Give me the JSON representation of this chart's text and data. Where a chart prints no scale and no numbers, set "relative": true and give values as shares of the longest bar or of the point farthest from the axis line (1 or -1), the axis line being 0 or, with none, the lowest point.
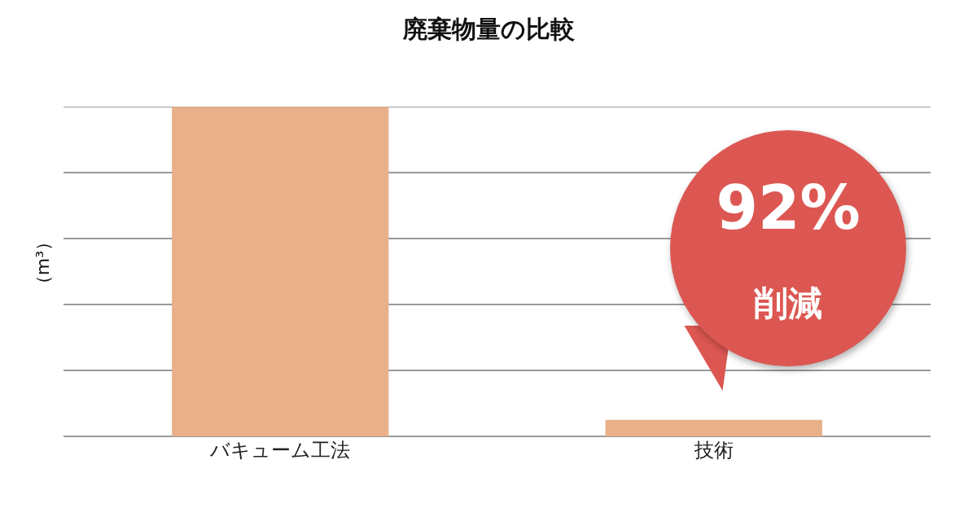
{
  "chart_data": {
    "type": "bar",
    "title": "廃棄物量の比較",
    "ylabel": "（m³）",
    "categories": [
      "バキューム工法",
      "技術"
    ],
    "values": [
      1,
      0.05
    ],
    "color": "#e9b089",
    "relative": true,
    "grid": "y",
    "annotations": [
      "92%",
      "削減"
    ]
  }
}
